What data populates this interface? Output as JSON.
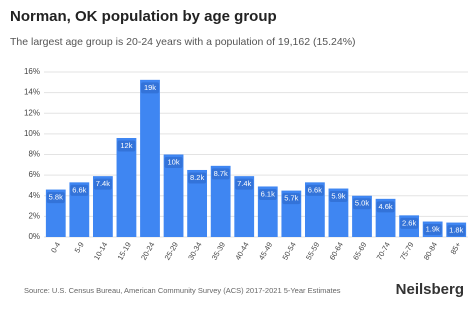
{
  "chart_data": {
    "type": "bar",
    "title": "Norman, OK population by age group",
    "subtitle": "The largest age group is 20-24 years with a population of 19,162 (15.24%)",
    "source": "Source: U.S. Census Bureau, American Community Survey (ACS) 2017-2021 5-Year Estimates",
    "brand": "Neilsberg",
    "categories": [
      "0-4",
      "5-9",
      "10-14",
      "15-19",
      "20-24",
      "25-29",
      "30-34",
      "35-39",
      "40-44",
      "45-49",
      "50-54",
      "55-59",
      "60-64",
      "65-69",
      "70-74",
      "75-79",
      "80-84",
      "85+"
    ],
    "values": [
      4.6,
      5.3,
      5.9,
      9.6,
      15.24,
      8.0,
      6.5,
      6.9,
      5.9,
      4.9,
      4.5,
      5.3,
      4.7,
      4.0,
      3.7,
      2.1,
      1.5,
      1.4
    ],
    "bar_labels": [
      "5.8k",
      "6.6k",
      "7.4k",
      "12k",
      "19k",
      "10k",
      "8.2k",
      "8.7k",
      "7.4k",
      "6.1k",
      "5.7k",
      "6.6k",
      "5.9k",
      "5.0k",
      "4.6k",
      "2.6k",
      "1.9k",
      "1.8k"
    ],
    "color": "#3f86f2",
    "ylim": [
      0,
      16
    ],
    "yticks": [
      {
        "value": 0,
        "label": "0%"
      },
      {
        "value": 2,
        "label": "2%"
      },
      {
        "value": 4,
        "label": "4%"
      },
      {
        "value": 6,
        "label": "6%"
      },
      {
        "value": 8,
        "label": "8%"
      },
      {
        "value": 10,
        "label": "10%"
      },
      {
        "value": 12,
        "label": "12%"
      },
      {
        "value": 14,
        "label": "14%"
      },
      {
        "value": 16,
        "label": "16%"
      }
    ],
    "grid": true
  }
}
